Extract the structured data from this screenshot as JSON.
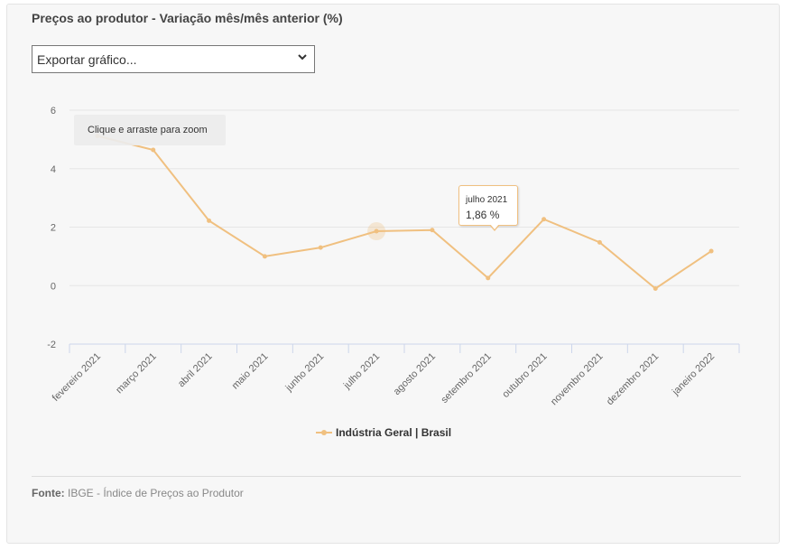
{
  "card": {
    "title": "Preços ao produtor - Variação mês/mês anterior (%)",
    "export_label": "Exportar gráfico...",
    "zoom_hint": "Clique e arraste para zoom",
    "source_label": "Fonte:",
    "source_text": " IBGE - Índice de Preços ao Produtor"
  },
  "tooltip": {
    "title": "julho 2021",
    "value": "1,86 %"
  },
  "chart_data": {
    "type": "line",
    "title": "Preços ao produtor - Variação mês/mês anterior (%)",
    "categories": [
      "fevereiro 2021",
      "março 2021",
      "abril 2021",
      "maio 2021",
      "junho 2021",
      "julho 2021",
      "agosto 2021",
      "setembro 2021",
      "outubro 2021",
      "novembro 2021",
      "dezembro 2021",
      "janeiro 2022"
    ],
    "series": [
      {
        "name": "Indústria Geral | Brasil",
        "values": [
          5.12,
          4.64,
          2.22,
          1.0,
          1.3,
          1.86,
          1.9,
          0.26,
          2.27,
          1.48,
          -0.1,
          1.18
        ],
        "color": "#f0c080"
      }
    ],
    "yticks": [
      "6",
      "4",
      "2",
      "0",
      "-2"
    ],
    "ylim": [
      -2,
      6
    ],
    "highlighted_index": 5,
    "grid": true,
    "legend": "bottom-center"
  },
  "colors": {
    "series": "#f0c080",
    "grid": "#e6e6e6",
    "axis": "#ccd6eb"
  }
}
